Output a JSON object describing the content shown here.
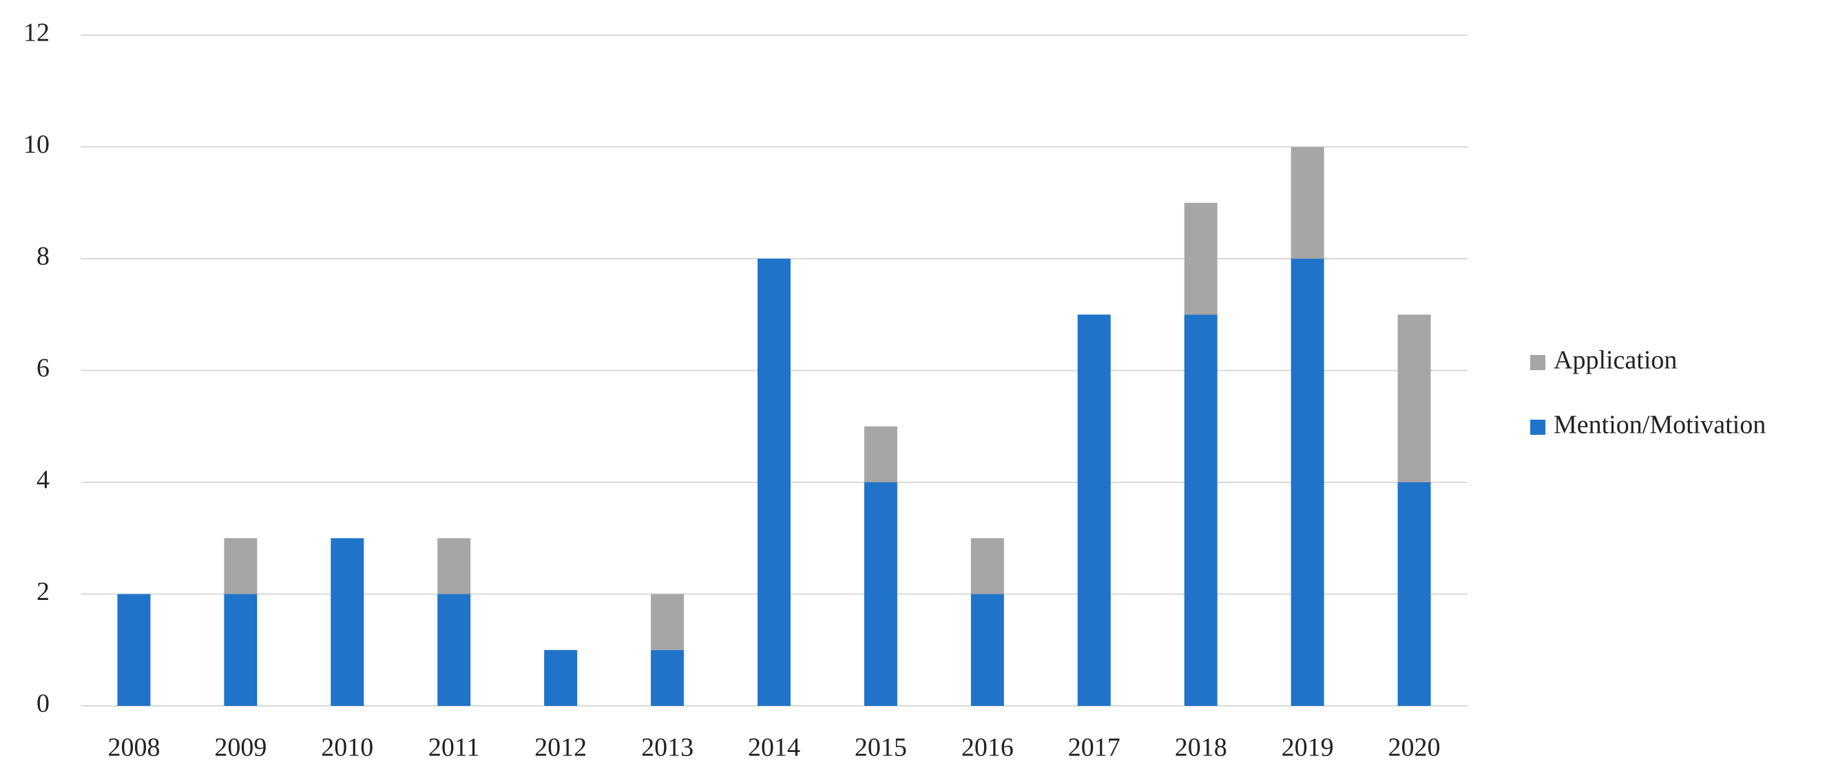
{
  "chart_data": {
    "type": "stacked_bar",
    "categories": [
      "2008",
      "2009",
      "2010",
      "2011",
      "2012",
      "2013",
      "2014",
      "2015",
      "2016",
      "2017",
      "2018",
      "2019",
      "2020"
    ],
    "series": [
      {
        "name": "Mention/Motivation",
        "color": "#1f74c9",
        "values": [
          2,
          2,
          3,
          2,
          1,
          1,
          8,
          4,
          2,
          7,
          7,
          8,
          4
        ]
      },
      {
        "name": "Application",
        "color": "#a6a6a6",
        "values": [
          0,
          1,
          0,
          1,
          0,
          1,
          0,
          1,
          1,
          0,
          2,
          2,
          3
        ]
      }
    ],
    "ylim": [
      0,
      12
    ],
    "yticks": [
      0,
      2,
      4,
      6,
      8,
      10,
      12
    ],
    "grid": true,
    "legend": "right"
  }
}
